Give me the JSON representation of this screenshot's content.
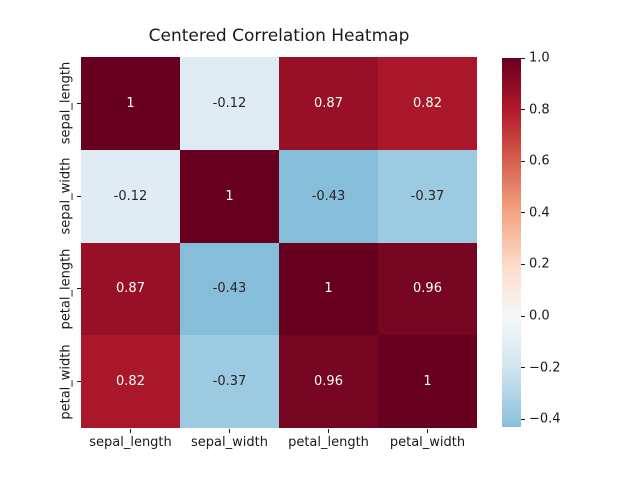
{
  "figure": {
    "background": "#ffffff",
    "text_color": "#1a1a1a"
  },
  "chart_data": {
    "type": "heatmap",
    "title": "Centered Correlation Heatmap",
    "categories": [
      "sepal_length",
      "sepal_width",
      "petal_length",
      "petal_width"
    ],
    "matrix": [
      [
        1,
        -0.12,
        0.87,
        0.82
      ],
      [
        -0.12,
        1,
        -0.43,
        -0.37
      ],
      [
        0.87,
        -0.43,
        1,
        0.96
      ],
      [
        0.82,
        -0.37,
        0.96,
        1
      ]
    ],
    "annotations": [
      [
        "1",
        "-0.12",
        "0.87",
        "0.82"
      ],
      [
        "-0.12",
        "1",
        "-0.43",
        "-0.37"
      ],
      [
        "0.87",
        "-0.43",
        "1",
        "0.96"
      ],
      [
        "0.82",
        "-0.37",
        "0.96",
        "1"
      ]
    ],
    "cell_colors": [
      [
        "#67001f",
        "#e0ecf3",
        "#981027",
        "#aa162a"
      ],
      [
        "#e0ecf3",
        "#67001f",
        "#86beda",
        "#9bcae1"
      ],
      [
        "#981027",
        "#86beda",
        "#67001f",
        "#760521"
      ],
      [
        "#aa162a",
        "#9bcae1",
        "#760521",
        "#67001f"
      ]
    ],
    "annot_text_colors": [
      [
        "#ffffff",
        "#262626",
        "#ffffff",
        "#ffffff"
      ],
      [
        "#262626",
        "#ffffff",
        "#262626",
        "#262626"
      ],
      [
        "#ffffff",
        "#262626",
        "#ffffff",
        "#ffffff"
      ],
      [
        "#ffffff",
        "#262626",
        "#ffffff",
        "#ffffff"
      ]
    ],
    "colormap": "RdBu_r",
    "center": 0,
    "vmin": -0.43,
    "vmax": 1.0,
    "grid": false,
    "legend_position": "colorbar-right",
    "colorbar": {
      "tick_labels": [
        "1.0",
        "0.8",
        "0.6",
        "0.4",
        "0.2",
        "0.0",
        "−0.2",
        "−0.4"
      ],
      "tick_values": [
        1.0,
        0.8,
        0.6,
        0.4,
        0.2,
        0.0,
        -0.2,
        -0.4
      ],
      "gradient_stops": [
        {
          "color": "#67001f",
          "pos": 0
        },
        {
          "color": "#b2182b",
          "pos": 13.99
        },
        {
          "color": "#d6604d",
          "pos": 27.97
        },
        {
          "color": "#f4a582",
          "pos": 41.96
        },
        {
          "color": "#fddbc7",
          "pos": 55.94
        },
        {
          "color": "#f7f7f7",
          "pos": 69.93
        },
        {
          "color": "#d1e5f0",
          "pos": 83.92
        },
        {
          "color": "#92c5de",
          "pos": 97.9
        },
        {
          "color": "#86beda",
          "pos": 100
        }
      ]
    }
  }
}
